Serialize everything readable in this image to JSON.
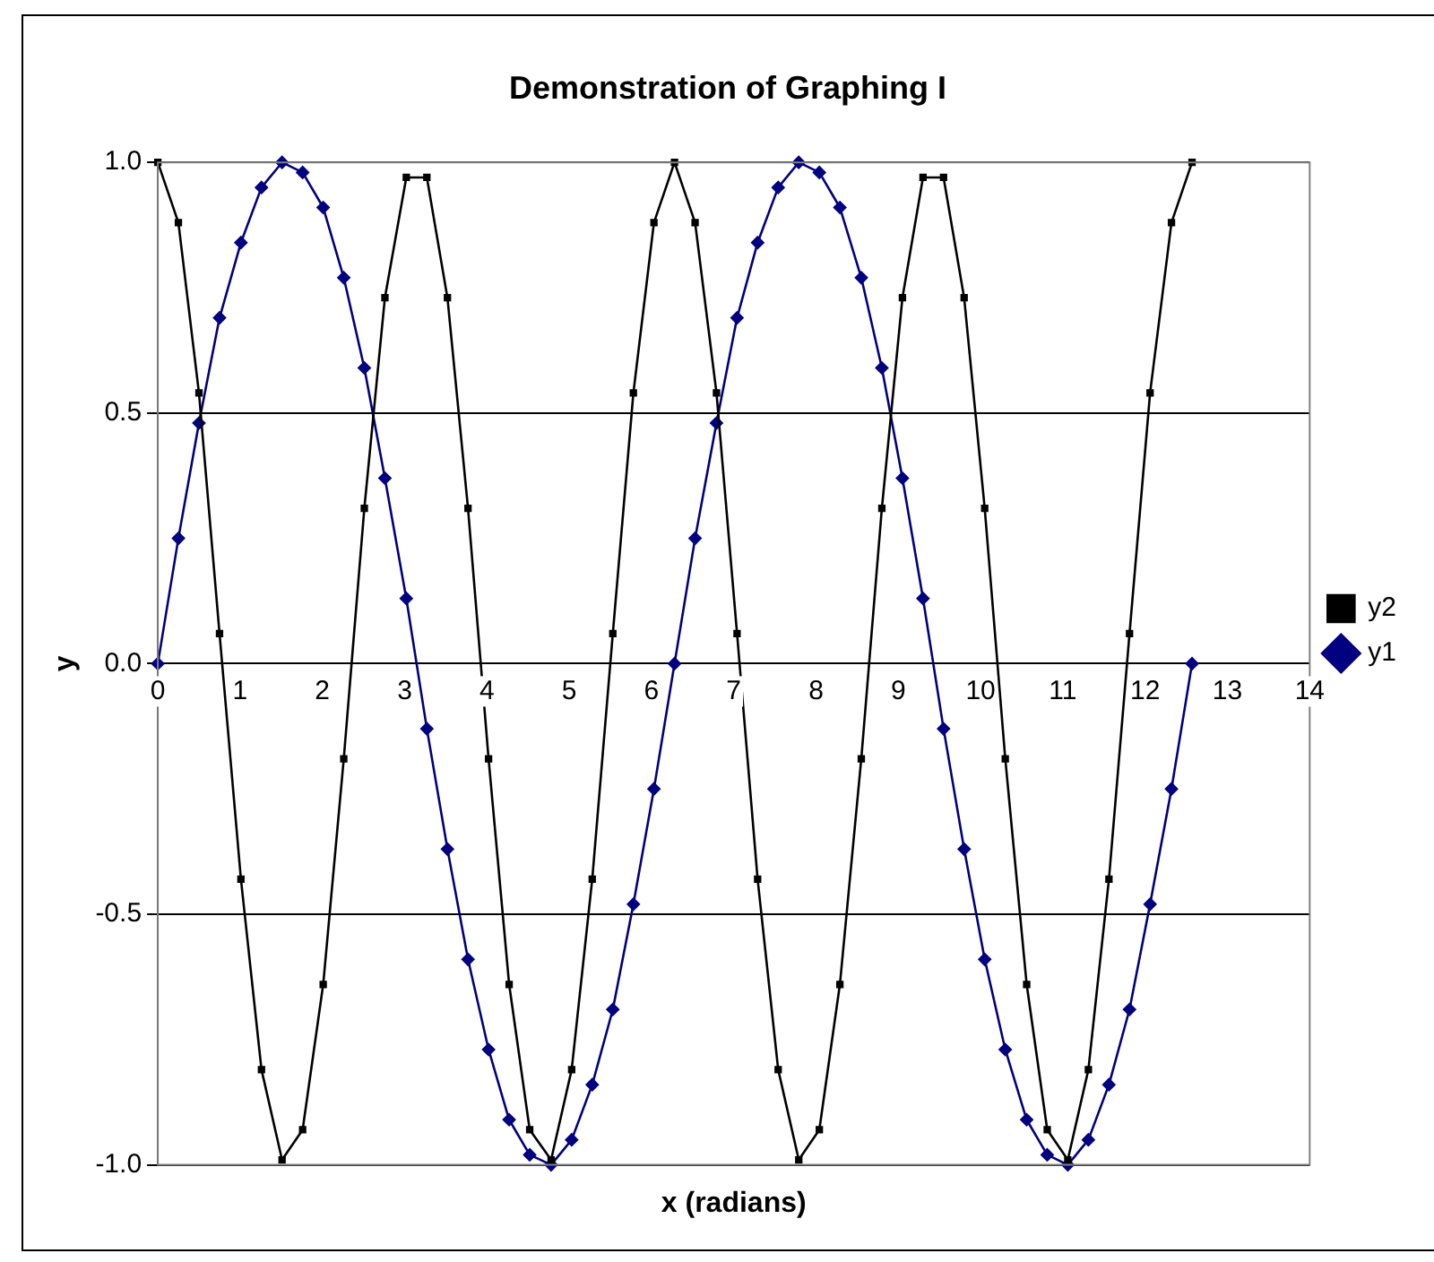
{
  "chart_data": {
    "type": "line",
    "title": "Demonstration of Graphing I",
    "xlabel": "x (radians)",
    "ylabel": "y",
    "x": [
      0,
      0.25,
      0.5,
      0.75,
      1.01,
      1.26,
      1.51,
      1.76,
      2.01,
      2.26,
      2.51,
      2.76,
      3.02,
      3.27,
      3.52,
      3.77,
      4.02,
      4.27,
      4.52,
      4.78,
      5.03,
      5.28,
      5.53,
      5.78,
      6.03,
      6.28,
      6.53,
      6.79,
      7.04,
      7.29,
      7.54,
      7.79,
      8.04,
      8.29,
      8.55,
      8.8,
      9.05,
      9.3,
      9.55,
      9.8,
      10.05,
      10.3,
      10.56,
      10.81,
      11.06,
      11.31,
      11.56,
      11.81,
      12.06,
      12.32,
      12.57
    ],
    "series": [
      {
        "name": "y1",
        "color": "#000080",
        "marker": "diamond",
        "values": [
          0,
          0.25,
          0.48,
          0.69,
          0.84,
          0.95,
          1,
          0.98,
          0.91,
          0.77,
          0.59,
          0.37,
          0.13,
          -0.13,
          -0.37,
          -0.59,
          -0.77,
          -0.91,
          -0.98,
          -1,
          -0.95,
          -0.84,
          -0.69,
          -0.48,
          -0.25,
          0,
          0.25,
          0.48,
          0.69,
          0.84,
          0.95,
          1,
          0.98,
          0.91,
          0.77,
          0.59,
          0.37,
          0.13,
          -0.13,
          -0.37,
          -0.59,
          -0.77,
          -0.91,
          -0.98,
          -1,
          -0.95,
          -0.84,
          -0.69,
          -0.48,
          -0.25,
          0
        ]
      },
      {
        "name": "y2",
        "color": "#000000",
        "marker": "square",
        "values": [
          1,
          0.88,
          0.54,
          0.06,
          -0.43,
          -0.81,
          -0.99,
          -0.93,
          -0.64,
          -0.19,
          0.31,
          0.73,
          0.97,
          0.97,
          0.73,
          0.31,
          -0.19,
          -0.64,
          -0.93,
          -0.99,
          -0.81,
          -0.43,
          0.06,
          0.54,
          0.88,
          1,
          0.88,
          0.54,
          0.06,
          -0.43,
          -0.81,
          -0.99,
          -0.93,
          -0.64,
          -0.19,
          0.31,
          0.73,
          0.97,
          0.97,
          0.73,
          0.31,
          -0.19,
          -0.64,
          -0.93,
          -0.99,
          -0.81,
          -0.43,
          0.06,
          0.54,
          0.88,
          1
        ]
      }
    ],
    "xlim": [
      0,
      14
    ],
    "xticks": [
      0,
      1,
      2,
      3,
      4,
      5,
      6,
      7,
      8,
      9,
      10,
      11,
      12,
      13,
      14
    ],
    "ylim": [
      -1,
      1
    ],
    "yticks": [
      {
        "value": -1,
        "label": "-1.0"
      },
      {
        "value": -0.5,
        "label": "-0.5"
      },
      {
        "value": 0,
        "label": "0.0"
      },
      {
        "value": 0.5,
        "label": "0.5"
      },
      {
        "value": 1,
        "label": "1.0"
      }
    ],
    "grid": "y",
    "legend": "right",
    "line_style": "solid"
  }
}
